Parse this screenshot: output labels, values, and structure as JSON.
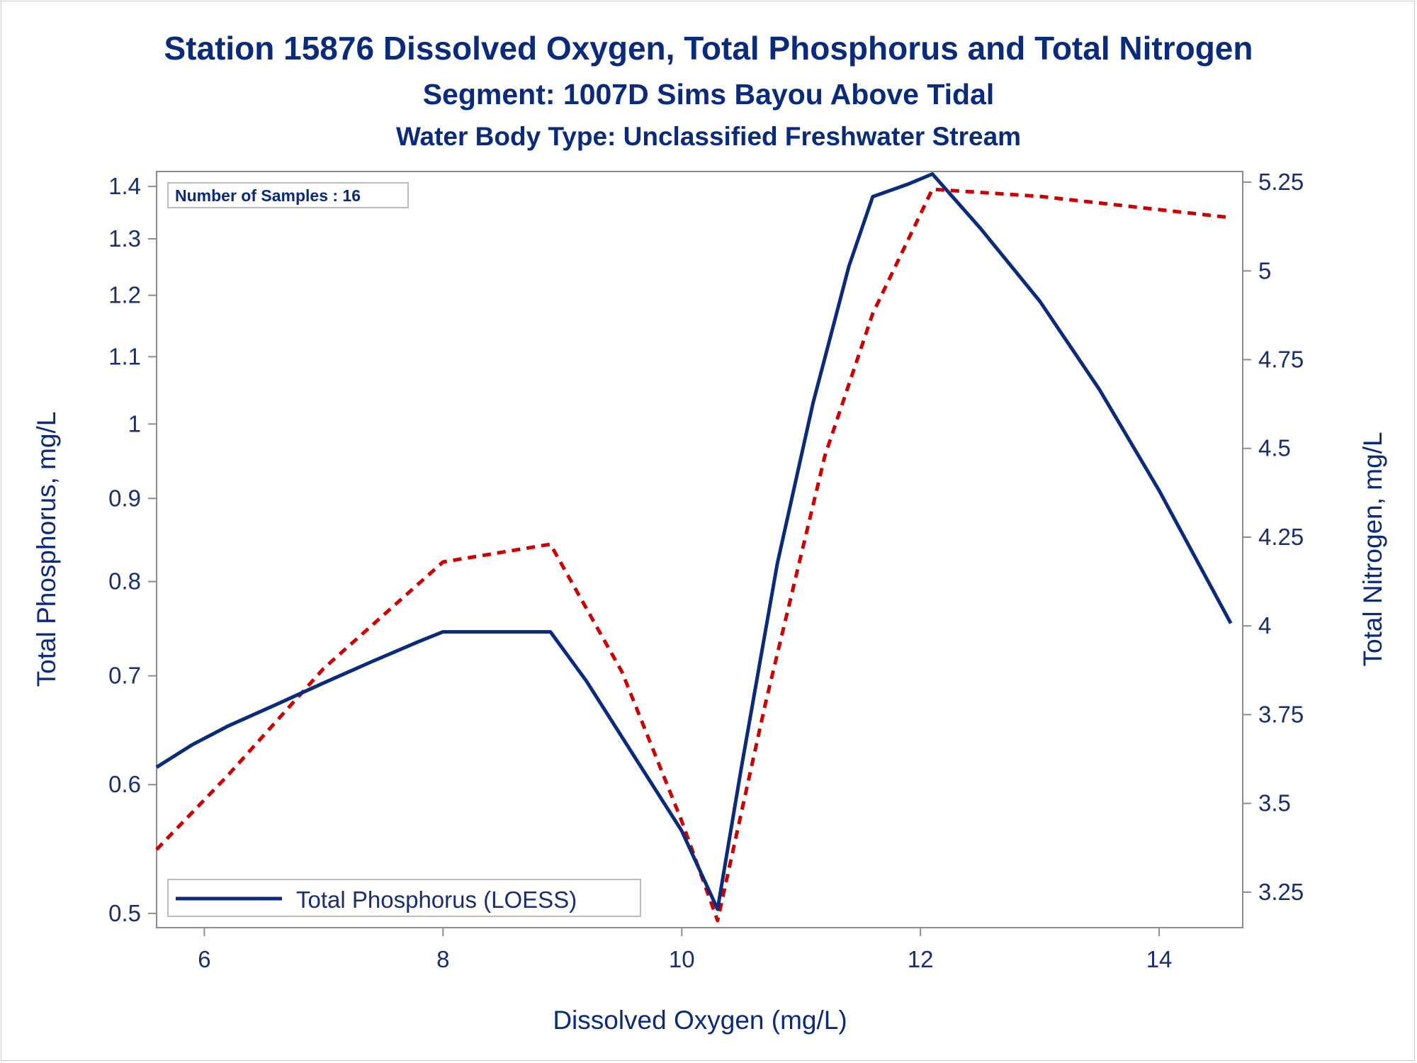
{
  "chart_data": {
    "type": "line",
    "title": "Station 15876  Dissolved Oxygen, Total Phosphorus and Total Nitrogen",
    "subtitle": "Segment: 1007D  Sims Bayou Above Tidal",
    "subtitle2": "Water Body Type: Unclassified Freshwater Stream",
    "xlabel": "Dissolved Oxygen (mg/L)",
    "ylabel_left": "Total Phosphorus, mg/L",
    "ylabel_right": "Total Nitrogen, mg/L",
    "xlim": [
      5.6,
      14.7
    ],
    "ylim_left": [
      0.49,
      1.43
    ],
    "ylim_right": [
      3.15,
      5.28
    ],
    "y_left_scale": "log",
    "x_ticks": [
      6,
      8,
      10,
      12,
      14
    ],
    "x_tick_labels": [
      "6",
      "8",
      "10",
      "12",
      "14"
    ],
    "y_left_ticks": [
      0.5,
      0.6,
      0.7,
      0.8,
      0.9,
      1,
      1.1,
      1.2,
      1.3,
      1.4
    ],
    "y_left_tick_labels": [
      "0.5",
      "0.6",
      "0.7",
      "0.8",
      "0.9",
      "1",
      "1.1",
      "1.2",
      "1.3",
      "1.4"
    ],
    "y_right_ticks": [
      3.25,
      3.5,
      3.75,
      4,
      4.25,
      4.5,
      4.75,
      5,
      5.25
    ],
    "y_right_tick_labels": [
      "3.25",
      "3.5",
      "3.75",
      "4",
      "4.25",
      "4.5",
      "4.75",
      "5",
      "5.25"
    ],
    "grid": false,
    "annotation": "Number of Samples : 16",
    "legend_position": "bottom-left",
    "series": [
      {
        "name": "Total Phosphorus (LOESS)",
        "axis": "left",
        "color": "#0a2a7a",
        "style": "solid",
        "x": [
          5.6,
          5.9,
          6.2,
          6.6,
          7.0,
          7.4,
          7.8,
          8.0,
          8.5,
          8.9,
          9.2,
          9.6,
          10.0,
          10.3,
          10.5,
          10.8,
          11.1,
          11.4,
          11.6,
          11.9,
          12.1,
          12.5,
          13.0,
          13.5,
          14.0,
          14.6
        ],
        "y": [
          0.615,
          0.635,
          0.652,
          0.672,
          0.693,
          0.714,
          0.735,
          0.745,
          0.745,
          0.745,
          0.695,
          0.625,
          0.562,
          0.503,
          0.615,
          0.82,
          1.03,
          1.25,
          1.38,
          1.405,
          1.425,
          1.32,
          1.19,
          1.05,
          0.91,
          0.754
        ]
      },
      {
        "name": "Total Nitrogen",
        "axis": "right",
        "color": "#cc0000",
        "style": "dashed",
        "x": [
          5.6,
          6.2,
          7.0,
          8.0,
          8.9,
          9.5,
          10.0,
          10.3,
          10.7,
          11.2,
          11.6,
          12.1,
          13.0,
          14.6
        ],
        "y": [
          3.37,
          3.58,
          3.88,
          4.18,
          4.23,
          3.87,
          3.45,
          3.17,
          3.78,
          4.48,
          4.88,
          5.23,
          5.21,
          5.15
        ]
      }
    ]
  }
}
